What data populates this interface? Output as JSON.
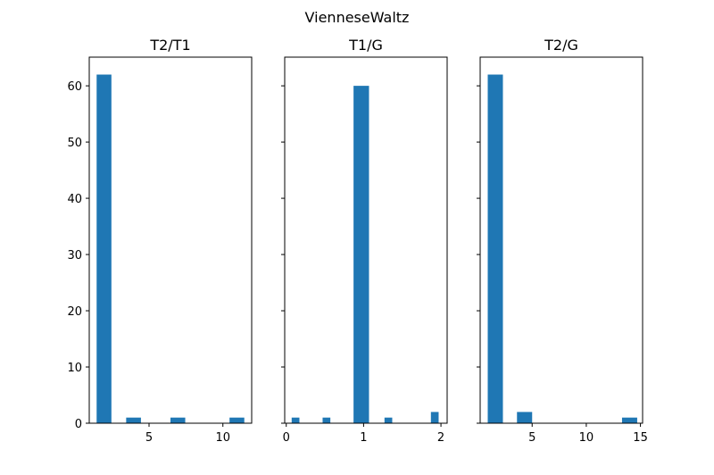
{
  "figure": {
    "suptitle": "VienneseWaltz",
    "bar_color": "#1f77b4"
  },
  "chart_data": [
    {
      "type": "bar",
      "title": "T2/T1",
      "xlabel": "",
      "ylabel": "",
      "xlim": [
        0.95,
        11.95
      ],
      "ylim": [
        0,
        65.1
      ],
      "xticks": [
        5,
        10
      ],
      "yticks": [
        0,
        10,
        20,
        30,
        40,
        50,
        60
      ],
      "grid": false,
      "bins": [
        {
          "x0": 1.45,
          "x1": 2.45,
          "value": 62
        },
        {
          "x0": 3.45,
          "x1": 4.45,
          "value": 1
        },
        {
          "x0": 6.45,
          "x1": 7.45,
          "value": 1
        },
        {
          "x0": 10.45,
          "x1": 11.45,
          "value": 1
        }
      ]
    },
    {
      "type": "bar",
      "title": "T1/G",
      "xlabel": "",
      "ylabel": "",
      "xlim": [
        -0.02,
        2.08
      ],
      "ylim": [
        0,
        65.1
      ],
      "xticks": [
        0,
        1,
        2
      ],
      "yticks": [
        0,
        10,
        20,
        30,
        40,
        50,
        60
      ],
      "grid": false,
      "bins": [
        {
          "x0": 0.07,
          "x1": 0.17,
          "value": 1
        },
        {
          "x0": 0.47,
          "x1": 0.57,
          "value": 1
        },
        {
          "x0": 0.87,
          "x1": 1.07,
          "value": 60
        },
        {
          "x0": 1.27,
          "x1": 1.37,
          "value": 1
        },
        {
          "x0": 1.87,
          "x1": 1.97,
          "value": 2
        }
      ]
    },
    {
      "type": "bar",
      "title": "T2/G",
      "xlabel": "",
      "ylabel": "",
      "xlim": [
        0.2,
        15.2
      ],
      "ylim": [
        0,
        65.1
      ],
      "xticks": [
        5,
        10,
        15
      ],
      "yticks": [
        0,
        10,
        20,
        30,
        40,
        50,
        60
      ],
      "grid": false,
      "bins": [
        {
          "x0": 0.9,
          "x1": 2.3,
          "value": 62
        },
        {
          "x0": 3.6,
          "x1": 5.0,
          "value": 2
        },
        {
          "x0": 13.3,
          "x1": 14.7,
          "value": 1
        }
      ]
    }
  ]
}
